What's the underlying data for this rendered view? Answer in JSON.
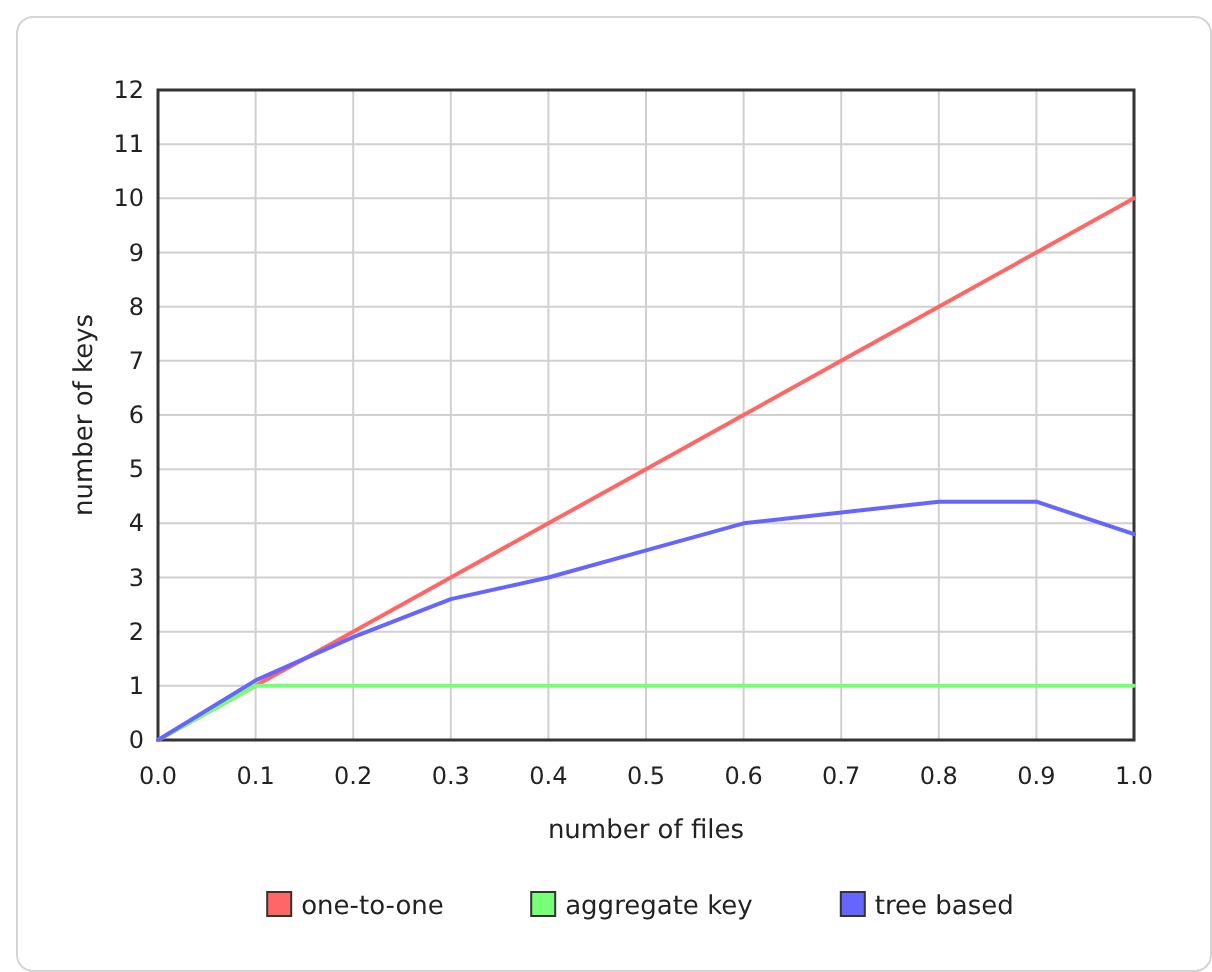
{
  "chart_data": {
    "type": "line",
    "xlabel": "number of files",
    "ylabel": "number of keys",
    "x": [
      0,
      0.1,
      0.2,
      0.3,
      0.4,
      0.5,
      0.6,
      0.7,
      0.8,
      0.9,
      1.0
    ],
    "series": [
      {
        "name": "one-to-one",
        "color": "#ff6666",
        "values": [
          0,
          1,
          2,
          3,
          4,
          5,
          6,
          7,
          8,
          9,
          10
        ]
      },
      {
        "name": "aggregate key",
        "color": "#77ff77",
        "values": [
          0,
          1,
          1,
          1,
          1,
          1,
          1,
          1,
          1,
          1,
          1
        ]
      },
      {
        "name": "tree based",
        "color": "#6666ff",
        "values": [
          0,
          1.1,
          1.9,
          2.6,
          3.0,
          3.5,
          4.0,
          4.2,
          4.4,
          4.4,
          3.8
        ]
      }
    ],
    "xlim": [
      0,
      1
    ],
    "xticks": [
      {
        "value": 0,
        "label": "0.0"
      },
      0.1,
      0.2,
      0.3,
      0.4,
      0.5,
      0.6,
      0.7,
      0.8,
      0.9,
      {
        "value": 1,
        "label": "1.0"
      }
    ],
    "ylim": [
      0,
      12
    ],
    "yticks": [
      0,
      1,
      2,
      3,
      4,
      5,
      6,
      7,
      8,
      9,
      10,
      11,
      12
    ],
    "grid": true,
    "legend": "bottom",
    "marker": "none",
    "line_style": "solid"
  }
}
